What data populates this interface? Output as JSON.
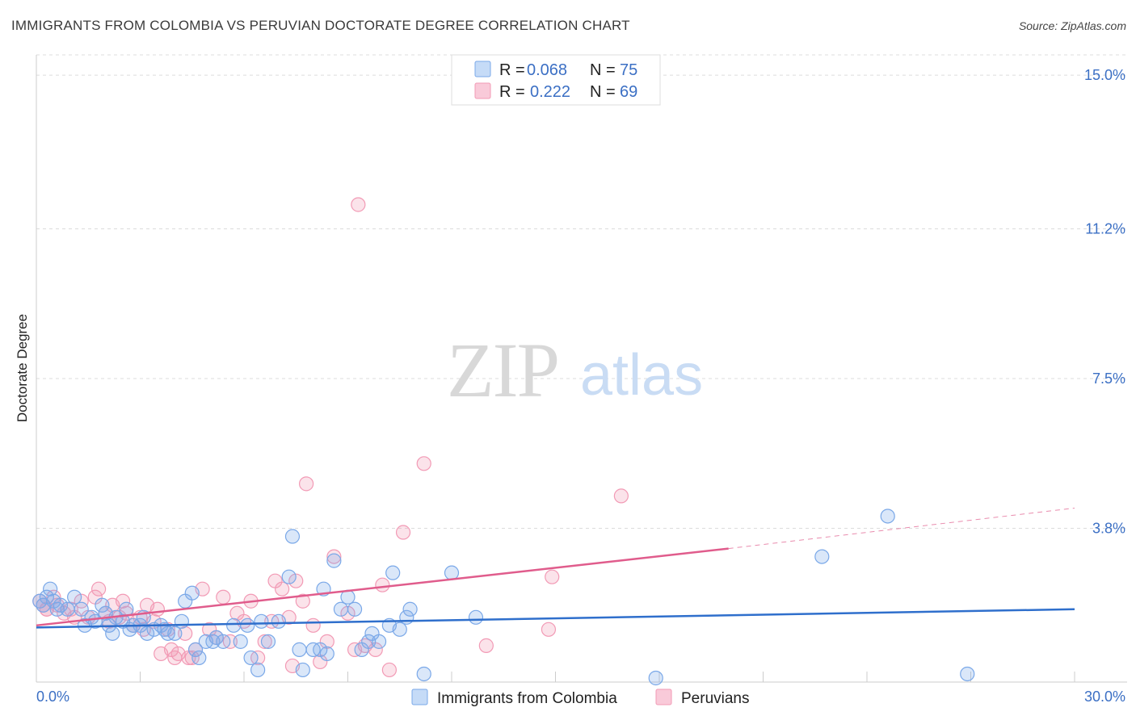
{
  "title": "IMMIGRANTS FROM COLOMBIA VS PERUVIAN DOCTORATE DEGREE CORRELATION CHART",
  "source": "Source: ZipAtlas.com",
  "watermark": {
    "zip": "ZIP",
    "atlas": "atlas"
  },
  "legend_top": [
    {
      "r_label": "R =",
      "r_value": "0.068",
      "n_label": "N =",
      "n_value": "75",
      "color": "#7aa8e8"
    },
    {
      "r_label": "R =",
      "r_value": "0.222",
      "n_label": "N =",
      "n_value": "69",
      "color": "#f29ab5"
    }
  ],
  "legend_bottom": [
    {
      "label": "Immigrants from Colombia",
      "color": "#7aa8e8"
    },
    {
      "label": "Peruvians",
      "color": "#f29ab5"
    }
  ],
  "chart_data": {
    "type": "scatter",
    "xlabel": "",
    "ylabel": "Doctorate Degree",
    "xlim": [
      0,
      30
    ],
    "ylim": [
      0,
      15.5
    ],
    "x_tick_labels": [
      "0.0%",
      "30.0%"
    ],
    "y_ticks": [
      3.8,
      7.5,
      11.2,
      15.0
    ],
    "y_tick_labels": [
      "3.8%",
      "7.5%",
      "11.2%",
      "15.0%"
    ],
    "grid": true,
    "series": [
      {
        "name": "Immigrants from Colombia",
        "color": "#7aa8e8",
        "line_color": "#2f6fcc",
        "trend": {
          "x0": 0,
          "y0": 1.35,
          "x1": 30,
          "y1": 1.8
        },
        "points": [
          [
            0.1,
            2.0
          ],
          [
            0.2,
            1.9
          ],
          [
            0.3,
            2.1
          ],
          [
            0.4,
            2.3
          ],
          [
            0.5,
            2.0
          ],
          [
            0.6,
            1.8
          ],
          [
            0.7,
            1.9
          ],
          [
            0.9,
            1.8
          ],
          [
            1.1,
            2.1
          ],
          [
            1.3,
            1.8
          ],
          [
            1.4,
            1.4
          ],
          [
            1.6,
            1.6
          ],
          [
            1.7,
            1.5
          ],
          [
            1.9,
            1.9
          ],
          [
            2.0,
            1.7
          ],
          [
            2.1,
            1.4
          ],
          [
            2.2,
            1.2
          ],
          [
            2.3,
            1.6
          ],
          [
            2.5,
            1.5
          ],
          [
            2.6,
            1.8
          ],
          [
            2.7,
            1.3
          ],
          [
            2.8,
            1.4
          ],
          [
            3.0,
            1.4
          ],
          [
            3.1,
            1.6
          ],
          [
            3.2,
            1.2
          ],
          [
            3.4,
            1.3
          ],
          [
            3.6,
            1.4
          ],
          [
            3.7,
            1.3
          ],
          [
            3.8,
            1.2
          ],
          [
            4.0,
            1.2
          ],
          [
            4.2,
            1.5
          ],
          [
            4.3,
            2.0
          ],
          [
            4.5,
            2.2
          ],
          [
            4.6,
            0.8
          ],
          [
            4.7,
            0.6
          ],
          [
            4.9,
            1.0
          ],
          [
            5.1,
            1.0
          ],
          [
            5.2,
            1.1
          ],
          [
            5.4,
            1.0
          ],
          [
            5.7,
            1.4
          ],
          [
            5.9,
            1.0
          ],
          [
            6.1,
            1.4
          ],
          [
            6.2,
            0.6
          ],
          [
            6.4,
            0.3
          ],
          [
            6.5,
            1.5
          ],
          [
            6.7,
            1.0
          ],
          [
            7.0,
            1.5
          ],
          [
            7.3,
            2.6
          ],
          [
            7.4,
            3.6
          ],
          [
            7.6,
            0.8
          ],
          [
            7.7,
            0.3
          ],
          [
            8.0,
            0.8
          ],
          [
            8.2,
            0.8
          ],
          [
            8.3,
            2.3
          ],
          [
            8.4,
            0.7
          ],
          [
            8.6,
            3.0
          ],
          [
            8.8,
            1.8
          ],
          [
            9.0,
            2.1
          ],
          [
            9.2,
            1.8
          ],
          [
            9.4,
            0.8
          ],
          [
            9.6,
            1.0
          ],
          [
            9.7,
            1.2
          ],
          [
            9.9,
            1.0
          ],
          [
            10.2,
            1.4
          ],
          [
            10.3,
            2.7
          ],
          [
            10.5,
            1.3
          ],
          [
            10.7,
            1.6
          ],
          [
            10.8,
            1.8
          ],
          [
            11.2,
            0.2
          ],
          [
            12.0,
            2.7
          ],
          [
            12.7,
            1.6
          ],
          [
            17.9,
            0.1
          ],
          [
            22.7,
            3.1
          ],
          [
            24.6,
            4.1
          ],
          [
            26.9,
            0.2
          ]
        ]
      },
      {
        "name": "Peruvians",
        "color": "#f29ab5",
        "line_color": "#e05c8c",
        "trend": {
          "x0": 0,
          "y0": 1.4,
          "x1": 20,
          "y1": 3.3
        },
        "trend_dashed": {
          "x0": 20,
          "y0": 3.3,
          "x1": 30,
          "y1": 4.3
        },
        "points": [
          [
            0.1,
            2.0
          ],
          [
            0.2,
            1.9
          ],
          [
            0.3,
            1.8
          ],
          [
            0.5,
            2.1
          ],
          [
            0.6,
            1.9
          ],
          [
            0.8,
            1.7
          ],
          [
            1.0,
            1.8
          ],
          [
            1.1,
            1.6
          ],
          [
            1.3,
            2.0
          ],
          [
            1.5,
            1.6
          ],
          [
            1.7,
            2.1
          ],
          [
            1.8,
            2.3
          ],
          [
            2.0,
            1.7
          ],
          [
            2.1,
            1.5
          ],
          [
            2.2,
            1.9
          ],
          [
            2.4,
            1.6
          ],
          [
            2.5,
            2.0
          ],
          [
            2.6,
            1.7
          ],
          [
            2.8,
            1.4
          ],
          [
            3.0,
            1.6
          ],
          [
            3.1,
            1.3
          ],
          [
            3.2,
            1.9
          ],
          [
            3.4,
            1.5
          ],
          [
            3.5,
            1.8
          ],
          [
            3.6,
            0.7
          ],
          [
            3.8,
            1.3
          ],
          [
            3.9,
            0.8
          ],
          [
            4.0,
            0.6
          ],
          [
            4.1,
            0.7
          ],
          [
            4.3,
            1.2
          ],
          [
            4.4,
            0.6
          ],
          [
            4.5,
            0.6
          ],
          [
            4.6,
            0.8
          ],
          [
            4.8,
            2.3
          ],
          [
            5.0,
            1.3
          ],
          [
            5.2,
            1.1
          ],
          [
            5.4,
            2.1
          ],
          [
            5.6,
            1.0
          ],
          [
            5.8,
            1.7
          ],
          [
            6.0,
            1.5
          ],
          [
            6.2,
            2.0
          ],
          [
            6.4,
            0.6
          ],
          [
            6.6,
            1.0
          ],
          [
            6.8,
            1.5
          ],
          [
            6.9,
            2.5
          ],
          [
            7.1,
            2.3
          ],
          [
            7.3,
            1.6
          ],
          [
            7.4,
            0.4
          ],
          [
            7.5,
            2.5
          ],
          [
            7.7,
            2.0
          ],
          [
            7.8,
            4.9
          ],
          [
            8.0,
            1.4
          ],
          [
            8.2,
            0.5
          ],
          [
            8.4,
            1.0
          ],
          [
            8.6,
            3.1
          ],
          [
            9.0,
            1.7
          ],
          [
            9.2,
            0.8
          ],
          [
            9.3,
            11.8
          ],
          [
            9.5,
            0.9
          ],
          [
            9.8,
            0.8
          ],
          [
            10.0,
            2.4
          ],
          [
            10.2,
            0.3
          ],
          [
            10.6,
            3.7
          ],
          [
            11.2,
            5.4
          ],
          [
            13.0,
            0.9
          ],
          [
            14.8,
            1.3
          ],
          [
            14.9,
            2.6
          ],
          [
            16.9,
            4.6
          ],
          [
            0.3,
            1.8
          ]
        ]
      }
    ]
  }
}
